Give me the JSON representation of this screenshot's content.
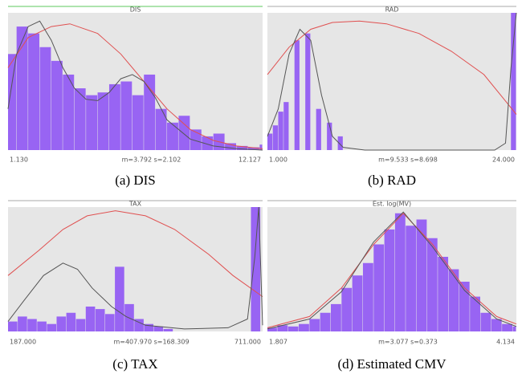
{
  "chart_data": [
    {
      "type": "histogram",
      "title": "DIS",
      "caption": "(a) DIS",
      "stats": "m=3.792  s=2.102",
      "frame_color": "#5cc85c",
      "color": "#8a4cf5",
      "xlim": [
        1.13,
        12.127
      ],
      "ylim": [
        0,
        100
      ],
      "xticks": [
        {
          "value": 1.13,
          "label": "1.130"
        },
        {
          "value": 12.127,
          "label": "12.127"
        }
      ],
      "bins": [
        1.13,
        1.5,
        2,
        2.5,
        3,
        3.5,
        4,
        4.5,
        5,
        5.5,
        6,
        6.5,
        7,
        7.5,
        8,
        8.5,
        9,
        9.5,
        10,
        10.5,
        11,
        11.5,
        12,
        12.127
      ],
      "counts": [
        70,
        90,
        85,
        75,
        65,
        55,
        45,
        40,
        42,
        48,
        50,
        40,
        55,
        30,
        20,
        25,
        15,
        10,
        12,
        5,
        3,
        2,
        4
      ],
      "series": [
        {
          "color": "#e05050",
          "x": [
            1.13,
            2,
            3,
            3.8,
            5,
            6,
            7,
            8,
            9,
            10,
            11,
            12.127
          ],
          "values": [
            60,
            82,
            90,
            92,
            85,
            70,
            50,
            30,
            15,
            7,
            3,
            1
          ]
        },
        {
          "color": "#555555",
          "x": [
            1.13,
            1.5,
            2,
            2.5,
            3,
            3.5,
            4,
            4.5,
            5,
            5.5,
            6,
            6.5,
            7,
            7.5,
            8,
            9,
            10,
            11,
            12.127
          ],
          "values": [
            30,
            70,
            90,
            94,
            80,
            60,
            45,
            37,
            36,
            42,
            52,
            55,
            50,
            38,
            22,
            8,
            3,
            1,
            0
          ]
        }
      ]
    },
    {
      "type": "histogram",
      "title": "RAD",
      "caption": "(b) RAD",
      "stats": "m=9.533  s=8.698",
      "frame_color": "#aaaaaa",
      "color": "#8a4cf5",
      "xlim": [
        1,
        24
      ],
      "ylim": [
        0,
        100
      ],
      "xticks": [
        {
          "value": 1,
          "label": "1.000"
        },
        {
          "value": 24,
          "label": "24.000"
        }
      ],
      "bins": [
        1,
        1.5,
        2,
        2.5,
        3,
        3.5,
        4,
        4.5,
        5,
        5.5,
        6,
        6.5,
        7,
        7.5,
        8,
        23.5,
        24
      ],
      "counts": [
        12,
        18,
        28,
        35,
        0,
        80,
        0,
        85,
        0,
        30,
        0,
        20,
        0,
        10,
        0,
        100
      ],
      "series": [
        {
          "color": "#e05050",
          "x": [
            1,
            3,
            5,
            7,
            9.5,
            12,
            15,
            18,
            21,
            24
          ],
          "values": [
            55,
            75,
            88,
            93,
            94,
            92,
            85,
            72,
            55,
            26
          ]
        },
        {
          "color": "#555555",
          "x": [
            1,
            2,
            3,
            4,
            5,
            6,
            7,
            8,
            10,
            15,
            22,
            23,
            23.5,
            24
          ],
          "values": [
            10,
            30,
            70,
            88,
            80,
            40,
            10,
            2,
            0,
            0,
            0,
            5,
            60,
            100
          ]
        }
      ]
    },
    {
      "type": "histogram",
      "title": "TAX",
      "caption": "(c) TAX",
      "stats": "m=407.970  s=168.309",
      "frame_color": "#aaaaaa",
      "color": "#8a4cf5",
      "xlim": [
        187,
        711
      ],
      "ylim": [
        0,
        100
      ],
      "xticks": [
        {
          "value": 187,
          "label": "187.000"
        },
        {
          "value": 711,
          "label": "711.000"
        }
      ],
      "bins": [
        187,
        207,
        227,
        247,
        267,
        287,
        307,
        327,
        347,
        367,
        387,
        407,
        427,
        447,
        467,
        487,
        507,
        527,
        547,
        567,
        587,
        607,
        627,
        647,
        667,
        687,
        707,
        711
      ],
      "counts": [
        8,
        12,
        10,
        8,
        6,
        12,
        15,
        10,
        20,
        18,
        14,
        52,
        22,
        10,
        6,
        4,
        2,
        0,
        0,
        0,
        0,
        0,
        0,
        0,
        0,
        100,
        0
      ],
      "series": [
        {
          "color": "#e05050",
          "x": [
            187,
            250,
            300,
            350,
            408,
            470,
            530,
            600,
            650,
            711
          ],
          "values": [
            45,
            65,
            82,
            93,
            97,
            93,
            82,
            62,
            45,
            28
          ]
        },
        {
          "color": "#555555",
          "x": [
            187,
            220,
            260,
            300,
            330,
            360,
            400,
            430,
            470,
            550,
            640,
            680,
            695,
            703,
            711
          ],
          "values": [
            8,
            25,
            45,
            55,
            50,
            35,
            20,
            12,
            5,
            2,
            3,
            10,
            60,
            100,
            5
          ]
        }
      ]
    },
    {
      "type": "histogram",
      "title": "Est. log(MV)",
      "caption": "(d) Estimated CMV",
      "stats": "m=3.077  s=0.373",
      "frame_color": "#aaaaaa",
      "color": "#8a4cf5",
      "xlim": [
        1.807,
        4.134
      ],
      "ylim": [
        0,
        100
      ],
      "xticks": [
        {
          "value": 1.807,
          "label": "1.807"
        },
        {
          "value": 4.134,
          "label": "4.134"
        }
      ],
      "bins": [
        1.807,
        1.9,
        2.0,
        2.1,
        2.2,
        2.3,
        2.4,
        2.5,
        2.6,
        2.7,
        2.8,
        2.9,
        3.0,
        3.1,
        3.2,
        3.3,
        3.4,
        3.5,
        3.6,
        3.7,
        3.8,
        3.9,
        4.0,
        4.1,
        4.134
      ],
      "counts": [
        3,
        5,
        4,
        6,
        10,
        15,
        22,
        35,
        45,
        55,
        70,
        82,
        95,
        85,
        90,
        75,
        60,
        50,
        40,
        28,
        15,
        10,
        6,
        4
      ],
      "series": [
        {
          "color": "#e05050",
          "x": [
            1.807,
            2.2,
            2.5,
            2.8,
            3.077,
            3.35,
            3.65,
            3.95,
            4.134
          ],
          "values": [
            3,
            12,
            35,
            70,
            95,
            70,
            35,
            12,
            6
          ]
        },
        {
          "color": "#555555",
          "x": [
            1.807,
            2.2,
            2.5,
            2.8,
            3.077,
            3.35,
            3.65,
            3.95,
            4.134
          ],
          "values": [
            2,
            10,
            32,
            72,
            96,
            68,
            33,
            10,
            4
          ]
        }
      ]
    }
  ]
}
